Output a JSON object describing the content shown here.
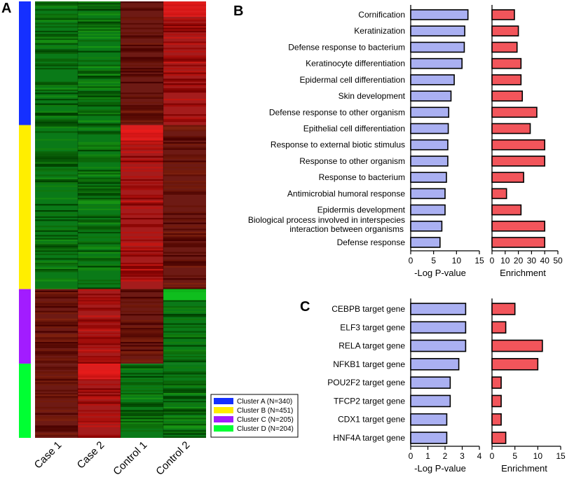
{
  "panel_letters": {
    "a": "A",
    "b": "B",
    "c": "C"
  },
  "colors": {
    "clusterA": "#1530ff",
    "clusterB": "#ffee00",
    "clusterC": "#a21cff",
    "clusterD": "#00ff33",
    "pvalue_bar": "#aab0f2",
    "enrich_bar": "#f2555b",
    "heat_red": "#ff2020",
    "heat_green": "#10d020"
  },
  "chart_data": [
    {
      "id": "A",
      "type": "heatmap",
      "columns": [
        "Case 1",
        "Case 2",
        "Control 1",
        "Control 2"
      ],
      "clusters": [
        {
          "name": "Cluster A",
          "n": 340,
          "label": "Cluster A (N=340)",
          "color_key": "clusterA",
          "pattern": [
            "green",
            "green",
            "darkred",
            "red"
          ]
        },
        {
          "name": "Cluster B",
          "n": 451,
          "label": "Cluster B (N=451)",
          "color_key": "clusterB",
          "pattern": [
            "green",
            "green",
            "red",
            "darkred"
          ]
        },
        {
          "name": "Cluster C",
          "n": 205,
          "label": "Cluster C (N=205)",
          "color_key": "clusterC",
          "pattern": [
            "darkred",
            "red",
            "darkred",
            "green"
          ]
        },
        {
          "name": "Cluster D",
          "n": 204,
          "label": "Cluster D (N=204)",
          "color_key": "clusterD",
          "pattern": [
            "darkred",
            "red",
            "green",
            "green"
          ]
        }
      ]
    },
    {
      "id": "B",
      "type": "bar",
      "orientation": "horizontal",
      "categories": [
        "Cornification",
        "Keratinization",
        "Defense response to bacterium",
        "Keratinocyte differentiation",
        "Epidermal cell differentiation",
        "Skin development",
        "Defense response to other organism",
        "Epithelial cell differentiation",
        "Response to external biotic stimulus",
        "Response to other organism",
        "Response to bacterium",
        "Antimicrobial humoral response",
        "Epidermis development",
        "Biological process involved in interspecies|interaction between organisms",
        "Defense response"
      ],
      "series": [
        {
          "name": "-Log P-value",
          "values": [
            12.5,
            11.8,
            11.7,
            11.2,
            9.5,
            8.8,
            8.3,
            8.2,
            8.1,
            8.1,
            7.8,
            7.5,
            7.5,
            6.8,
            6.4
          ],
          "xlim": [
            0,
            15
          ],
          "ticks": [
            0,
            5,
            10,
            15
          ]
        },
        {
          "name": "Enrichment",
          "values": [
            17,
            20,
            19,
            22,
            22,
            23,
            34,
            29,
            40,
            40,
            24,
            11,
            22,
            40,
            40
          ],
          "xlim": [
            0,
            50
          ],
          "ticks": [
            0,
            10,
            20,
            30,
            40,
            50
          ]
        }
      ],
      "xlabels": [
        "-Log P-value",
        "Enrichment"
      ]
    },
    {
      "id": "C",
      "type": "bar",
      "orientation": "horizontal",
      "categories": [
        "CEBPB target gene",
        "ELF3 target gene",
        "RELA target gene",
        "NFKB1 target gene",
        "POU2F2 target gene",
        "TFCP2 target gene",
        "CDX1 target gene",
        "HNF4A target gene"
      ],
      "series": [
        {
          "name": "-Log P-value",
          "values": [
            3.2,
            3.2,
            3.2,
            2.8,
            2.3,
            2.3,
            2.1,
            2.1
          ],
          "xlim": [
            0,
            4
          ],
          "ticks": [
            0,
            1,
            2,
            3,
            4
          ]
        },
        {
          "name": "Enrichment",
          "values": [
            5,
            3,
            11,
            10,
            2,
            2,
            2,
            3
          ],
          "xlim": [
            0,
            15
          ],
          "ticks": [
            0,
            5,
            10,
            15
          ]
        }
      ],
      "xlabels": [
        "-Log P-value",
        "Enrichment"
      ]
    }
  ]
}
